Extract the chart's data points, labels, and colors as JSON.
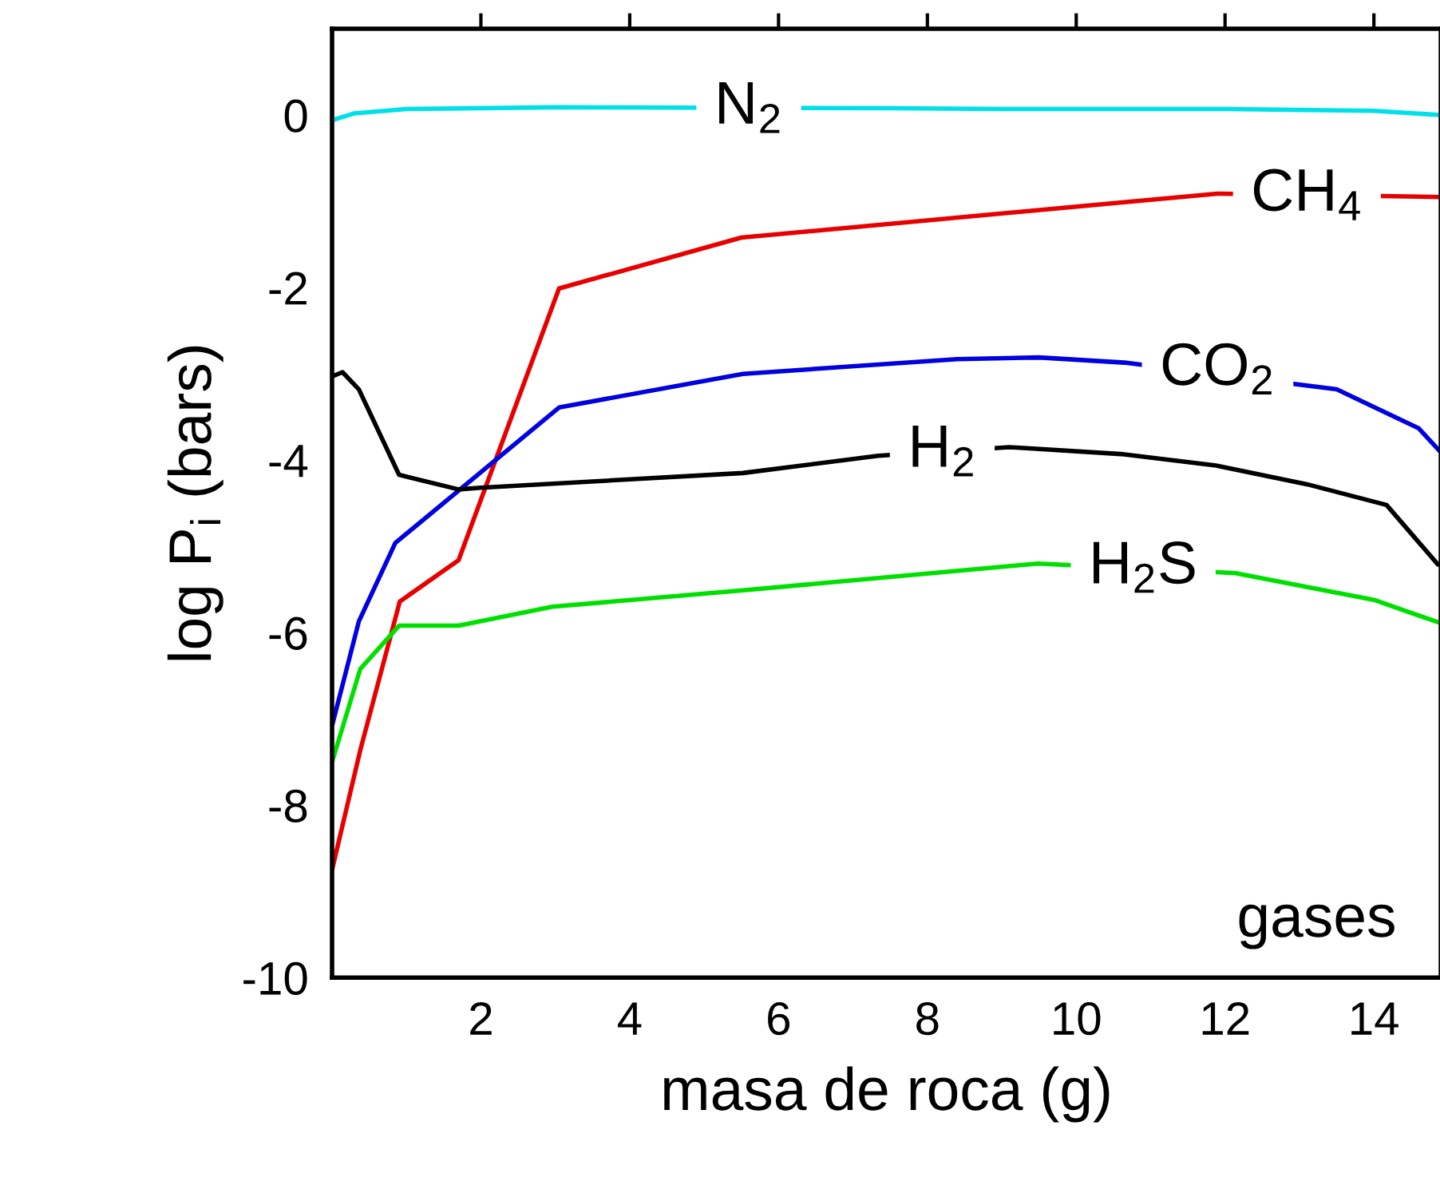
{
  "chart_data": {
    "type": "line",
    "xlabel": "masa de roca (g)",
    "ylabel": "log P$_{i}$ (bars)",
    "xlim": [
      0,
      14.9
    ],
    "ylim": [
      -10,
      1
    ],
    "xticks": [
      2,
      4,
      6,
      8,
      10,
      12,
      14
    ],
    "yticks": [
      -10,
      -8,
      -6,
      -4,
      -2,
      0
    ],
    "grid": false,
    "legend": false,
    "marker": "none",
    "line_style": "solid",
    "series": [
      {
        "color": "#00e0e8",
        "x": [
          0,
          0.3,
          1,
          3,
          7.5,
          9,
          12,
          14,
          14.9
        ],
        "values": [
          -0.06,
          0.02,
          0.07,
          0.09,
          0.08,
          0.07,
          0.07,
          0.05,
          0.0
        ]
      },
      {
        "color": "#e80000",
        "x": [
          0,
          0.38,
          0.91,
          1.7,
          3.05,
          5.5,
          11.9,
          14.9
        ],
        "values": [
          -8.75,
          -7.36,
          -5.64,
          -5.16,
          -2.01,
          -1.42,
          -0.91,
          -0.95
        ]
      },
      {
        "color": "#0000e0",
        "x": [
          0,
          0.36,
          0.85,
          3.05,
          5.52,
          8.4,
          9.5,
          10.65,
          13.5,
          14.6,
          14.9
        ],
        "values": [
          -7.08,
          -5.87,
          -4.96,
          -3.39,
          -3.0,
          -2.83,
          -2.81,
          -2.87,
          -3.18,
          -3.63,
          -3.91
        ]
      },
      {
        "color": "#000000",
        "x": [
          0,
          0.14,
          0.36,
          0.9,
          1.7,
          2,
          5.52,
          7.34,
          9.1,
          10.6,
          11.86,
          13.1,
          14.17,
          14.86
        ],
        "values": [
          -3.03,
          -2.98,
          -3.18,
          -4.17,
          -4.34,
          -4.32,
          -4.15,
          -3.95,
          -3.85,
          -3.93,
          -4.06,
          -4.28,
          -4.52,
          -5.21
        ]
      },
      {
        "color": "#00e000",
        "x": [
          0,
          0.38,
          0.9,
          1.7,
          2.96,
          5.52,
          9.48,
          12.14,
          14.0,
          14.86
        ],
        "values": [
          -7.5,
          -6.42,
          -5.92,
          -5.92,
          -5.7,
          -5.51,
          -5.2,
          -5.31,
          -5.62,
          -5.88
        ]
      }
    ],
    "annotations": [
      {
        "text": "N$_{2}$",
        "x": 5.6,
        "y": 0.08
      },
      {
        "text": "CH$_{4}$",
        "x": 13.1,
        "y": -0.93
      },
      {
        "text": "CO$_{2}$",
        "x": 11.9,
        "y": -2.95
      },
      {
        "text": "H$_{2}$",
        "x": 8.2,
        "y": -3.9
      },
      {
        "text": "H$_{2}$S",
        "x": 10.9,
        "y": -5.25
      },
      "gases"
    ]
  }
}
